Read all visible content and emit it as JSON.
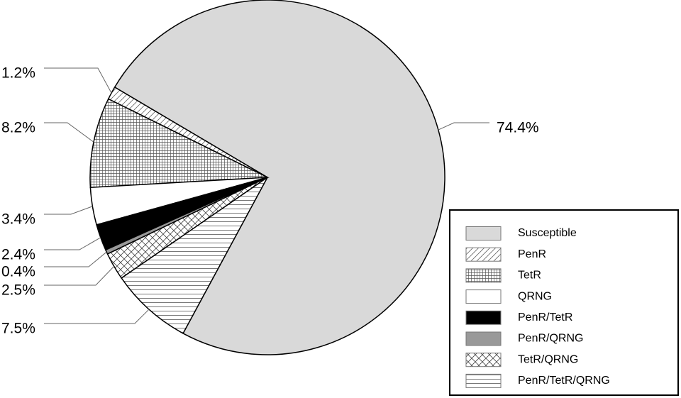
{
  "chart_data": {
    "type": "pie",
    "categories": [
      "Susceptible",
      "PenR",
      "TetR",
      "QRNG",
      "PenR/TetR",
      "PenR/QRNG",
      "TetR/QRNG",
      "PenR/TetR/QRNG"
    ],
    "values": [
      74.4,
      1.2,
      8.2,
      3.4,
      2.4,
      0.4,
      2.5,
      7.5
    ],
    "value_labels": [
      "74.4%",
      "1.2%",
      "8.2%",
      "3.4%",
      "2.4%",
      "0.4%",
      "2.5%",
      "7.5%"
    ]
  }
}
